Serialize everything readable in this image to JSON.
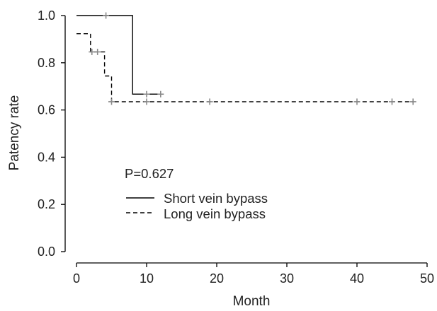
{
  "chart_data": {
    "type": "line",
    "subtype": "kaplan-meier step plot",
    "xlabel": "Month",
    "ylabel": "Patency rate",
    "xlim": [
      0,
      50
    ],
    "ylim": [
      0,
      1.0
    ],
    "x_ticks": [
      "0",
      "10",
      "20",
      "30",
      "40",
      "50"
    ],
    "y_ticks": [
      "0.0",
      "0.2",
      "0.4",
      "0.6",
      "0.8",
      "1.0"
    ],
    "annotation": "P=0.627",
    "legend_position": "lower-left inside plot",
    "grid": false,
    "series": [
      {
        "name": "Short vein bypass",
        "line_style": "solid",
        "steps": [
          [
            0,
            1.0
          ],
          [
            8,
            0.667
          ],
          [
            12,
            0.667
          ]
        ],
        "censored": [
          [
            4.2,
            1.0
          ],
          [
            10,
            0.667
          ],
          [
            12,
            0.667
          ]
        ]
      },
      {
        "name": "Long vein bypass",
        "line_style": "dashed",
        "steps": [
          [
            0,
            0.923
          ],
          [
            2,
            0.846
          ],
          [
            4,
            0.744
          ],
          [
            5,
            0.635
          ],
          [
            48,
            0.635
          ]
        ],
        "censored": [
          [
            2.2,
            0.846
          ],
          [
            3,
            0.846
          ],
          [
            5,
            0.635
          ],
          [
            10,
            0.635
          ],
          [
            19,
            0.635
          ],
          [
            40,
            0.635
          ],
          [
            45,
            0.635
          ],
          [
            48,
            0.635
          ]
        ]
      }
    ],
    "colors": {
      "line": "#000000",
      "censor_mark": "#8a8a8a"
    }
  }
}
